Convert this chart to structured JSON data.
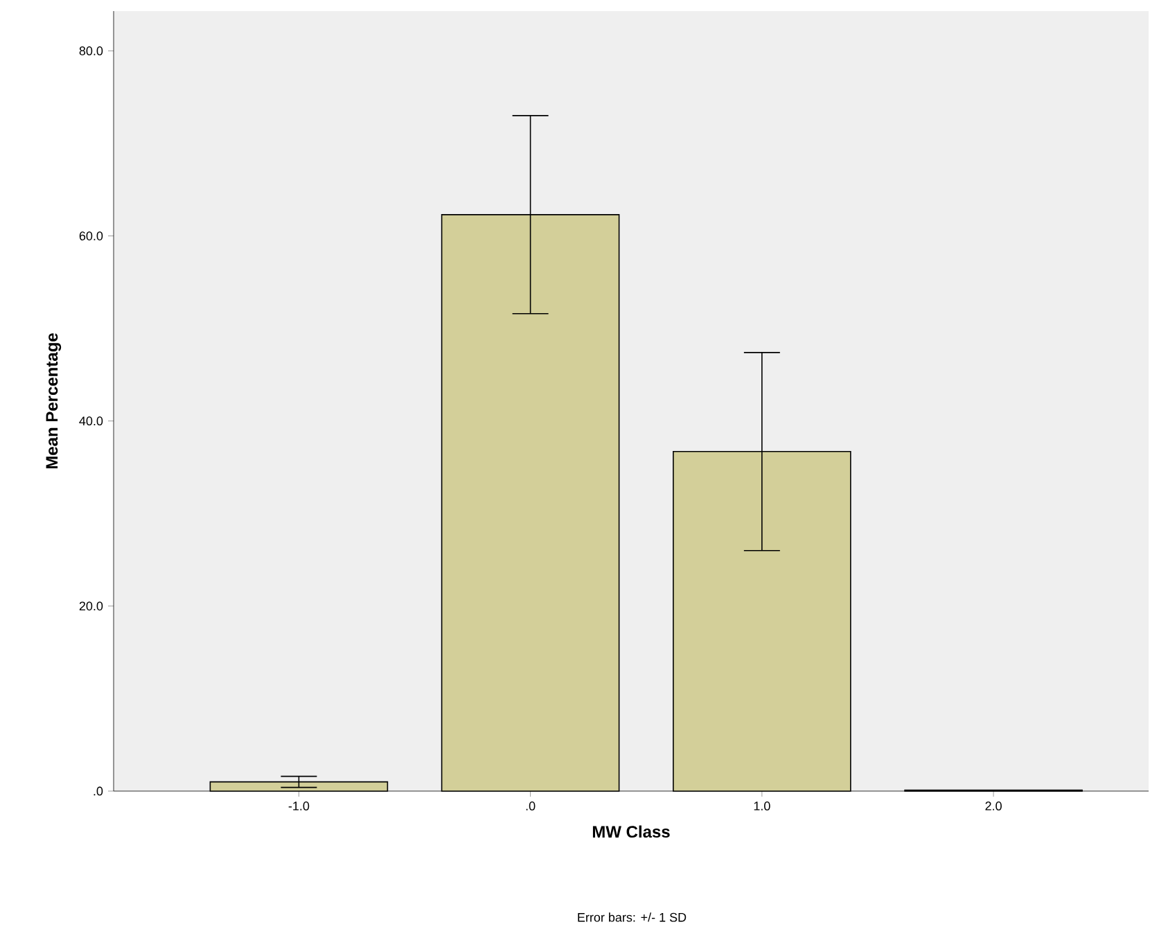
{
  "chart_data": {
    "type": "bar",
    "xlabel": "MW Class",
    "ylabel": "Mean Percentage",
    "categories": [
      "-1.0",
      ".0",
      "1.0",
      "2.0"
    ],
    "values": [
      1.0,
      62.3,
      36.7,
      0.1
    ],
    "errors": [
      0.6,
      10.7,
      10.7,
      null
    ],
    "color": "#d3cf99",
    "ylim": [
      0,
      84.3
    ],
    "yticks": [
      {
        "value": 0,
        "label": ".0"
      },
      {
        "value": 20,
        "label": "20.0"
      },
      {
        "value": 40,
        "label": "40.0"
      },
      {
        "value": 60,
        "label": "60.0"
      },
      {
        "value": 80,
        "label": "80.0"
      }
    ],
    "annotations": [
      "Error bars: +/- 1 SD"
    ]
  }
}
